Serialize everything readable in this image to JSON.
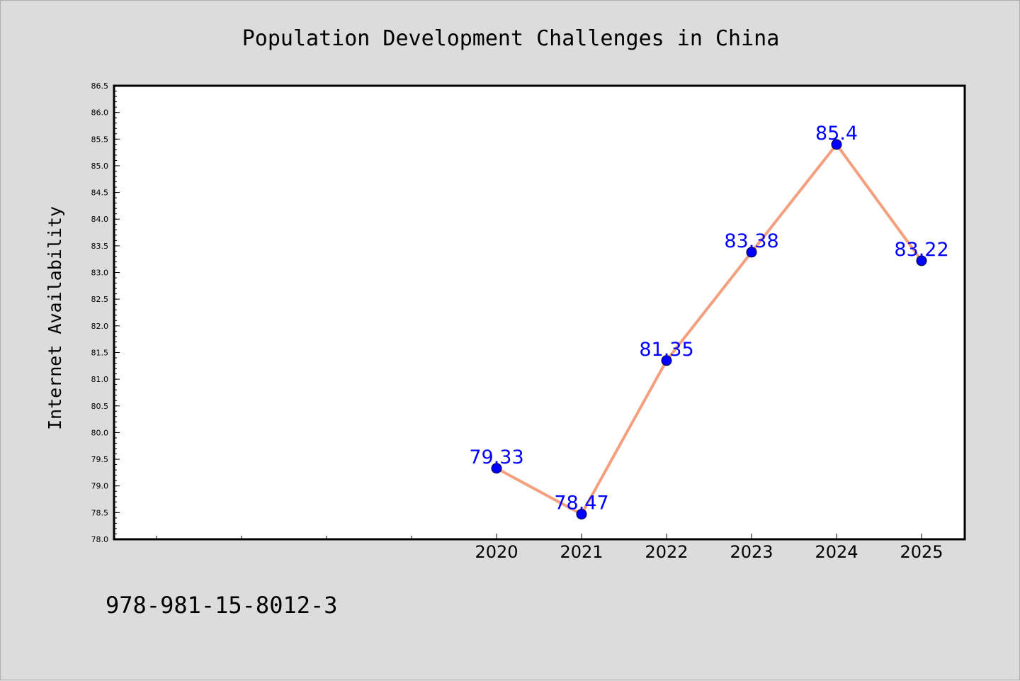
{
  "chart_data": {
    "type": "line",
    "title": "Population Development Challenges in China",
    "xlabel": "",
    "ylabel": "Internet Availability",
    "x": [
      "2020",
      "2021",
      "2022",
      "2023",
      "2024",
      "2025"
    ],
    "series": [
      {
        "values": [
          79.33,
          78.47,
          81.35,
          83.38,
          85.4,
          83.22
        ],
        "data_labels": [
          "79.33",
          "78.47",
          "81.35",
          "83.38",
          "85.4",
          "83.22"
        ]
      }
    ],
    "ylim": [
      78.0,
      86.5
    ],
    "yticks": [
      "78.0",
      "78.5",
      "79.0",
      "79.5",
      "80.0",
      "80.5",
      "81.0",
      "81.5",
      "82.0",
      "82.5",
      "83.0",
      "83.5",
      "84.0",
      "84.5",
      "85.0",
      "85.5",
      "86.0",
      "86.5"
    ],
    "xtick_labels": [
      "2020",
      "2021",
      "2022",
      "2023",
      "2024",
      "2025"
    ],
    "grid": false,
    "legend": "none",
    "colors": {
      "line": "#f4a07e",
      "marker": "#0000ff",
      "data_label": "#0000ff",
      "plot_background": "#ffffff",
      "page_background": "#dcdcdc"
    }
  },
  "footer": {
    "isbn": "978-981-15-8012-3"
  }
}
